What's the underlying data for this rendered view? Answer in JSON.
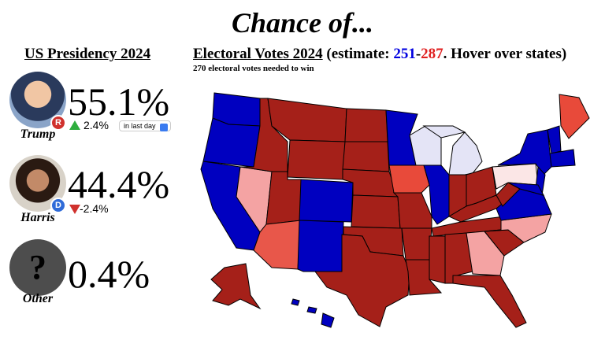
{
  "header": {
    "title": "Chance of..."
  },
  "presidency": {
    "title": "US Presidency 2024",
    "candidates": [
      {
        "name": "Trump",
        "badge": "R",
        "chance": "55.1%",
        "change": "2.4%",
        "period": "in last day"
      },
      {
        "name": "Harris",
        "badge": "D",
        "chance": "44.4%",
        "change": "-2.4%"
      },
      {
        "name": "Other",
        "avatar": "?",
        "chance": "0.4%"
      }
    ]
  },
  "electoral": {
    "title": "Electoral Votes 2024",
    "estimate_prefix": "(estimate: ",
    "dem": "251",
    "sep": "-",
    "rep": "287",
    "suffix": ". Hover over states)",
    "note": "270 electoral votes needed to win"
  }
}
